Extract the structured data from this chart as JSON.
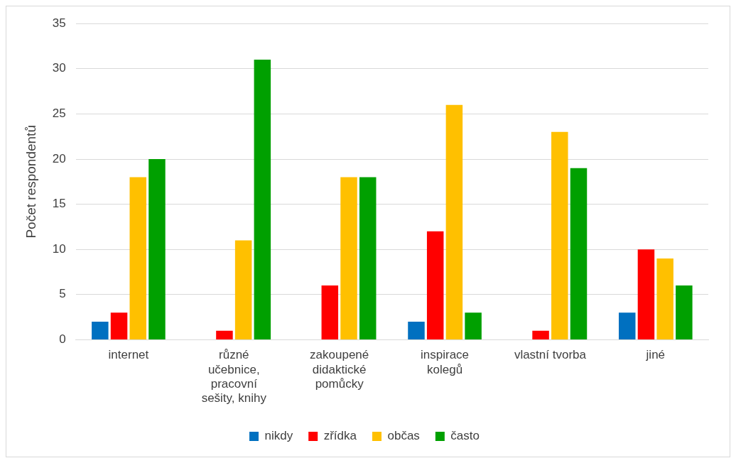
{
  "chart_data": {
    "type": "bar",
    "ylabel": "Počet respondentů",
    "categories": [
      "internet",
      "různé učebnice, pracovní sešity, knihy",
      "zakoupené didaktické pomůcky",
      "inspirace kolegů",
      "vlastní tvorba",
      "jiné"
    ],
    "series": [
      {
        "name": "nikdy",
        "color": "#0070c0",
        "values": [
          2,
          0,
          0,
          2,
          0,
          3
        ]
      },
      {
        "name": "zřídka",
        "color": "#ff0000",
        "values": [
          3,
          1,
          6,
          12,
          1,
          10
        ]
      },
      {
        "name": "občas",
        "color": "#ffc000",
        "values": [
          18,
          11,
          18,
          26,
          23,
          9
        ]
      },
      {
        "name": "často",
        "color": "#00a000",
        "values": [
          20,
          31,
          18,
          3,
          19,
          6
        ]
      }
    ],
    "ylim": [
      0,
      35
    ],
    "yticks": [
      0,
      5,
      10,
      15,
      20,
      25,
      30,
      35
    ],
    "grid": "y",
    "legend": "bottom"
  }
}
